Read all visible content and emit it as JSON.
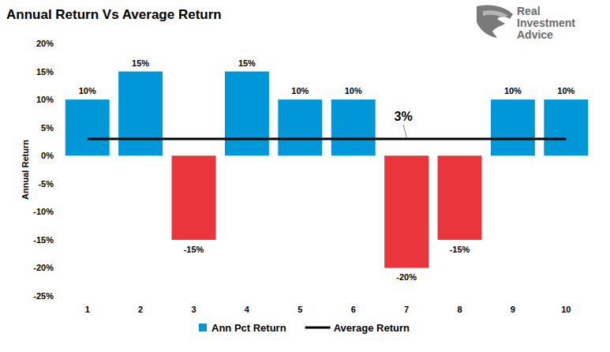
{
  "chart_data": {
    "type": "bar",
    "title": "Annual Return Vs Average Return",
    "y_label": "Annual Return",
    "source": "Real Investment Advice",
    "categories": [
      "1",
      "2",
      "3",
      "4",
      "5",
      "6",
      "7",
      "8",
      "9",
      "10"
    ],
    "series": [
      {
        "name": "Ann Pct Return",
        "type": "bar",
        "color": "#0097D9",
        "colors": [
          "#0097D9",
          "#0097D9",
          "#E9353B",
          "#0097D9",
          "#0097D9",
          "#0097D9",
          "#E9353B",
          "#E9353B",
          "#0097D9",
          "#0097D9"
        ],
        "values": [
          10,
          15,
          -15,
          15,
          10,
          10,
          -20,
          -15,
          10,
          10
        ],
        "value_labels": [
          "10%",
          "15%",
          "-15%",
          "15%",
          "10%",
          "10%",
          "-20%",
          "-15%",
          "10%",
          "10%"
        ]
      },
      {
        "name": "Average Return",
        "type": "line",
        "color": "#000000",
        "values": [
          3,
          3,
          3,
          3,
          3,
          3,
          3,
          3,
          3,
          3
        ]
      }
    ],
    "annotations": [
      {
        "text": "3%",
        "x": "7",
        "y": 3
      }
    ],
    "ylim": [
      -25,
      20
    ],
    "yticks": [
      {
        "value": -25,
        "label": "-25%"
      },
      {
        "value": -20,
        "label": "-20%"
      },
      {
        "value": -15,
        "label": "-15%"
      },
      {
        "value": -10,
        "label": "-10%"
      },
      {
        "value": -5,
        "label": "-5%"
      },
      {
        "value": 0,
        "label": "0%"
      },
      {
        "value": 5,
        "label": "5%"
      },
      {
        "value": 10,
        "label": "10%"
      },
      {
        "value": 15,
        "label": "15%"
      },
      {
        "value": 20,
        "label": "20%"
      }
    ],
    "grid": false,
    "data_labels": true,
    "legend": "bottom"
  }
}
